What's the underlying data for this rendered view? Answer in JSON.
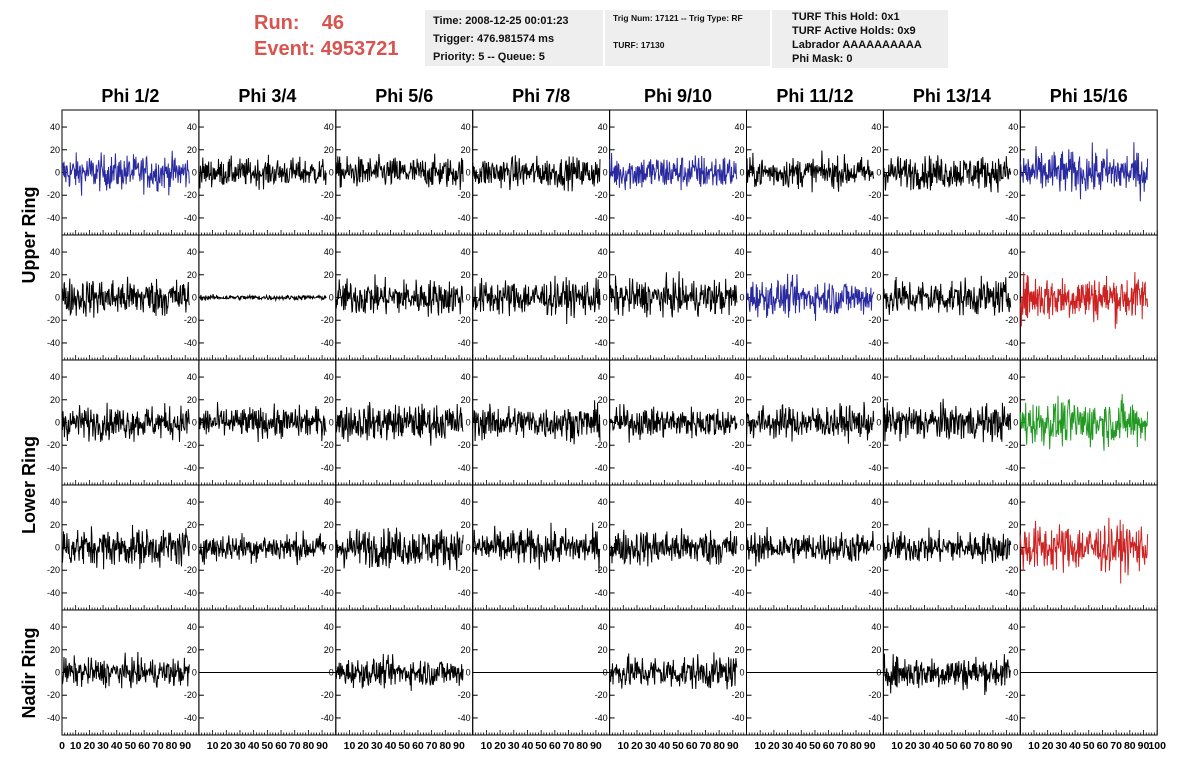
{
  "header": {
    "run_label": "Run:",
    "run_value": "46",
    "event_label": "Event:",
    "event_value": "4953721",
    "box1": [
      "Time: 2008-12-25 00:01:23",
      "Trigger: 476.981574 ms",
      "Priority: 5 -- Queue: 5"
    ],
    "box2": [
      "Trig Num: 17121 -- Trig Type: RF",
      "TURF: 17130"
    ],
    "box3": [
      "TURF This Hold: 0x1",
      "TURF Active Holds: 0x9",
      "Labrador AAAAAAAAAA",
      "Phi Mask: 0"
    ]
  },
  "colors": {
    "header_red": "#d9534f",
    "trace_black": "#000000",
    "trace_blue": "#2a2aa0",
    "trace_red": "#cc2222",
    "trace_green": "#229922",
    "info_box_bg": "#eeeeee"
  },
  "chart_data": {
    "type": "line",
    "description_columns": [
      "Phi 1/2",
      "Phi 3/4",
      "Phi 5/6",
      "Phi 7/8",
      "Phi 9/10",
      "Phi 11/12",
      "Phi 13/14",
      "Phi 15/16"
    ],
    "ring_labels": [
      "Upper Ring",
      "Lower Ring",
      "Nadir Ring"
    ],
    "ylim": [
      -55,
      55
    ],
    "yticks": [
      -40,
      -20,
      0,
      20,
      40
    ],
    "ytick_labels": [
      "-40",
      "-20",
      "0",
      "20",
      "40"
    ],
    "xlim": [
      0,
      100
    ],
    "xticks": [
      0,
      10,
      20,
      30,
      40,
      50,
      60,
      70,
      80,
      90,
      100
    ],
    "xtick_labels": [
      "0",
      "10",
      "20",
      "30",
      "40",
      "50",
      "60",
      "70",
      "80",
      "90",
      "100"
    ],
    "rows": 5,
    "panels": [
      {
        "row": 0,
        "col": 0,
        "color": "blue",
        "amp": 14
      },
      {
        "row": 0,
        "col": 1,
        "color": "black",
        "amp": 11
      },
      {
        "row": 0,
        "col": 2,
        "color": "black",
        "amp": 12
      },
      {
        "row": 0,
        "col": 3,
        "color": "black",
        "amp": 12
      },
      {
        "row": 0,
        "col": 4,
        "color": "blue",
        "amp": 14
      },
      {
        "row": 0,
        "col": 5,
        "color": "black",
        "amp": 12
      },
      {
        "row": 0,
        "col": 6,
        "color": "black",
        "amp": 13
      },
      {
        "row": 0,
        "col": 7,
        "color": "blue",
        "amp": 17
      },
      {
        "row": 1,
        "col": 0,
        "color": "black",
        "amp": 15
      },
      {
        "row": 1,
        "col": 1,
        "color": "black",
        "amp": 2
      },
      {
        "row": 1,
        "col": 2,
        "color": "black",
        "amp": 14
      },
      {
        "row": 1,
        "col": 3,
        "color": "black",
        "amp": 14
      },
      {
        "row": 1,
        "col": 4,
        "color": "black",
        "amp": 14
      },
      {
        "row": 1,
        "col": 5,
        "color": "blue",
        "amp": 14
      },
      {
        "row": 1,
        "col": 6,
        "color": "black",
        "amp": 14
      },
      {
        "row": 1,
        "col": 7,
        "color": "red",
        "amp": 18
      },
      {
        "row": 2,
        "col": 0,
        "color": "black",
        "amp": 13
      },
      {
        "row": 2,
        "col": 1,
        "color": "black",
        "amp": 12
      },
      {
        "row": 2,
        "col": 2,
        "color": "black",
        "amp": 14
      },
      {
        "row": 2,
        "col": 3,
        "color": "black",
        "amp": 13
      },
      {
        "row": 2,
        "col": 4,
        "color": "black",
        "amp": 12
      },
      {
        "row": 2,
        "col": 5,
        "color": "black",
        "amp": 13
      },
      {
        "row": 2,
        "col": 6,
        "color": "black",
        "amp": 14
      },
      {
        "row": 2,
        "col": 7,
        "color": "green",
        "amp": 18
      },
      {
        "row": 3,
        "col": 0,
        "color": "black",
        "amp": 15
      },
      {
        "row": 3,
        "col": 1,
        "color": "black",
        "amp": 11
      },
      {
        "row": 3,
        "col": 2,
        "color": "black",
        "amp": 15
      },
      {
        "row": 3,
        "col": 3,
        "color": "black",
        "amp": 14
      },
      {
        "row": 3,
        "col": 4,
        "color": "black",
        "amp": 14
      },
      {
        "row": 3,
        "col": 5,
        "color": "black",
        "amp": 12
      },
      {
        "row": 3,
        "col": 6,
        "color": "black",
        "amp": 12
      },
      {
        "row": 3,
        "col": 7,
        "color": "red",
        "amp": 19
      },
      {
        "row": 4,
        "col": 0,
        "color": "black",
        "amp": 11
      },
      {
        "row": 4,
        "col": 1,
        "color": "black",
        "amp": 0
      },
      {
        "row": 4,
        "col": 2,
        "color": "black",
        "amp": 11
      },
      {
        "row": 4,
        "col": 3,
        "color": "black",
        "amp": 0
      },
      {
        "row": 4,
        "col": 4,
        "color": "black",
        "amp": 13
      },
      {
        "row": 4,
        "col": 5,
        "color": "black",
        "amp": 0
      },
      {
        "row": 4,
        "col": 6,
        "color": "black",
        "amp": 13
      },
      {
        "row": 4,
        "col": 7,
        "color": "black",
        "amp": 0
      }
    ]
  }
}
